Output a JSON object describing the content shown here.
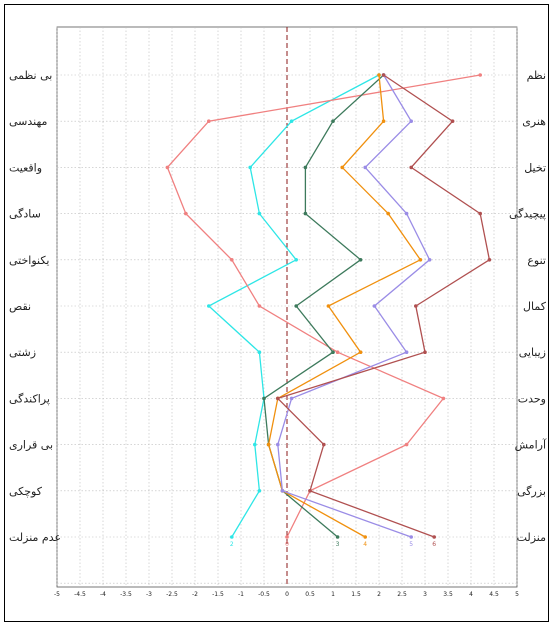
{
  "chart_data": {
    "type": "line",
    "orientation": "horizontal-profile",
    "left_labels": [
      "بی نظمی",
      "مهندسی",
      "واقعیت",
      "سادگی",
      "یکنواختی",
      "نقص",
      "زشتی",
      "پراکندگی",
      "بی قراری",
      "کوچکی",
      "عدم منزلت"
    ],
    "right_labels": [
      "نظم",
      "هنری",
      "تخیل",
      "پیچیدگی",
      "تنوع",
      "کمال",
      "زیبایی",
      "وحدت",
      "آرامش",
      "بزرگی",
      "منزلت"
    ],
    "x_ticks": [
      "-5",
      "-4.5",
      "-4",
      "-3.5",
      "-3",
      "-2.5",
      "-2",
      "-1.5",
      "-1",
      "-0.5",
      "0",
      "0.5",
      "1",
      "1.5",
      "2",
      "2.5",
      "3",
      "3.5",
      "4",
      "4.5",
      "5"
    ],
    "xlim": [
      -5,
      5
    ],
    "grid": true,
    "zero_line": true,
    "series": [
      {
        "name": "2",
        "color": "#2ee6e6",
        "values": [
          2.0,
          0.1,
          -0.8,
          -0.6,
          0.2,
          -1.7,
          -0.6,
          -0.5,
          -0.7,
          -0.6,
          -1.2
        ]
      },
      {
        "name": "0",
        "color": "#f08080",
        "values": [
          4.2,
          -1.7,
          -2.6,
          -2.2,
          -1.2,
          -0.6,
          1.1,
          3.4,
          2.6,
          0.5,
          0.0
        ]
      },
      {
        "name": "3",
        "color": "#3d7a5c",
        "values": [
          2.1,
          1.0,
          0.4,
          0.4,
          1.6,
          0.2,
          1.0,
          -0.5,
          -0.4,
          -0.1,
          1.1
        ]
      },
      {
        "name": "4",
        "color": "#f0900e",
        "values": [
          2.0,
          2.1,
          1.2,
          2.2,
          2.9,
          0.9,
          1.6,
          -0.2,
          -0.4,
          -0.1,
          1.7
        ]
      },
      {
        "name": "5",
        "color": "#9a8ce6",
        "values": [
          2.1,
          2.7,
          1.7,
          2.6,
          3.1,
          1.9,
          2.6,
          0.1,
          -0.2,
          -0.1,
          2.7
        ]
      },
      {
        "name": "6",
        "color": "#b05050",
        "values": [
          2.1,
          3.6,
          2.7,
          4.2,
          4.4,
          2.8,
          3.0,
          -0.2,
          0.8,
          0.5,
          3.2
        ]
      }
    ]
  }
}
